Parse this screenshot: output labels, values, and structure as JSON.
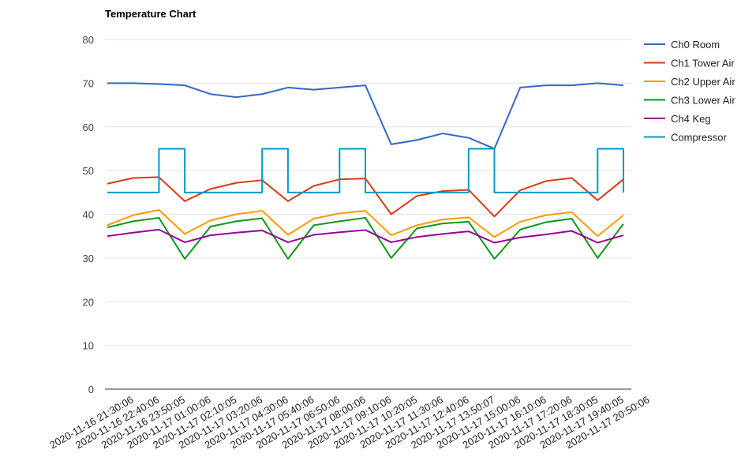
{
  "chart_data": {
    "type": "line",
    "title": "Temperature Chart",
    "xlabel": "",
    "ylabel": "",
    "ylim": [
      0,
      80
    ],
    "yticks": [
      0,
      10,
      20,
      30,
      40,
      50,
      60,
      70,
      80
    ],
    "grid": true,
    "legend_position": "right",
    "x_tick_labels": [
      "2020-11-16 21:30:06",
      "2020-11-16 22:40:06",
      "2020-11-16 23:50:05",
      "2020-11-17 01:00:06",
      "2020-11-17 02:10:05",
      "2020-11-17 03:20:06",
      "2020-11-17 04:30:06",
      "2020-11-17 05:40:06",
      "2020-11-17 06:50:06",
      "2020-11-17 08:00:06",
      "2020-11-17 09:10:06",
      "2020-11-17 10:20:05",
      "2020-11-17 11:30:06",
      "2020-11-17 12:40:06",
      "2020-11-17 13:50:07",
      "2020-11-17 15:00:06",
      "2020-11-17 16:10:06",
      "2020-11-17 17:20:06",
      "2020-11-17 18:30:05",
      "2020-11-17 19:40:05",
      "2020-11-17 20:50:06"
    ],
    "x": [
      0,
      1,
      2,
      3,
      4,
      5,
      6,
      7,
      8,
      9,
      10,
      11,
      12,
      13,
      14,
      15,
      16,
      17,
      18,
      19,
      20
    ],
    "series": [
      {
        "name": "Ch0 Room",
        "color": "#3366cc",
        "values": [
          70.0,
          70.0,
          69.8,
          69.5,
          67.5,
          66.8,
          67.5,
          69.0,
          68.5,
          69.0,
          69.5,
          56.0,
          57.0,
          58.5,
          57.5,
          55.0,
          69.0,
          69.5,
          69.5,
          70.0,
          69.5
        ]
      },
      {
        "name": "Ch1 Tower Air",
        "color": "#dc3912",
        "values": [
          47.0,
          48.3,
          48.5,
          43.0,
          45.8,
          47.2,
          47.8,
          43.0,
          46.5,
          48.0,
          48.2,
          40.0,
          44.2,
          45.3,
          45.6,
          39.5,
          45.5,
          47.6,
          48.3,
          43.2,
          48.0
        ]
      },
      {
        "name": "Ch2 Upper Air",
        "color": "#ff9900",
        "values": [
          37.5,
          39.8,
          41.0,
          35.5,
          38.6,
          40.0,
          40.8,
          35.3,
          39.0,
          40.2,
          40.8,
          35.2,
          37.5,
          38.8,
          39.3,
          34.8,
          38.3,
          39.8,
          40.5,
          35.0,
          39.8
        ]
      },
      {
        "name": "Ch3 Lower Air",
        "color": "#109618",
        "values": [
          37.0,
          38.4,
          39.2,
          29.8,
          37.2,
          38.4,
          39.1,
          29.8,
          37.5,
          38.4,
          39.2,
          30.0,
          36.8,
          37.9,
          38.3,
          29.8,
          36.5,
          38.2,
          39.0,
          30.0,
          37.8
        ]
      },
      {
        "name": "Ch4 Keg",
        "color": "#990099",
        "values": [
          35.0,
          35.8,
          36.5,
          33.6,
          35.2,
          35.8,
          36.3,
          33.6,
          35.3,
          35.9,
          36.4,
          33.6,
          34.8,
          35.5,
          36.1,
          33.5,
          34.7,
          35.4,
          36.2,
          33.5,
          35.2
        ]
      },
      {
        "name": "Compressor",
        "color": "#0099c6",
        "values": [
          45,
          45,
          55,
          45,
          45,
          45,
          55,
          45,
          45,
          55,
          45,
          45,
          45,
          45,
          55,
          45,
          45,
          45,
          45,
          55,
          45
        ]
      }
    ]
  }
}
